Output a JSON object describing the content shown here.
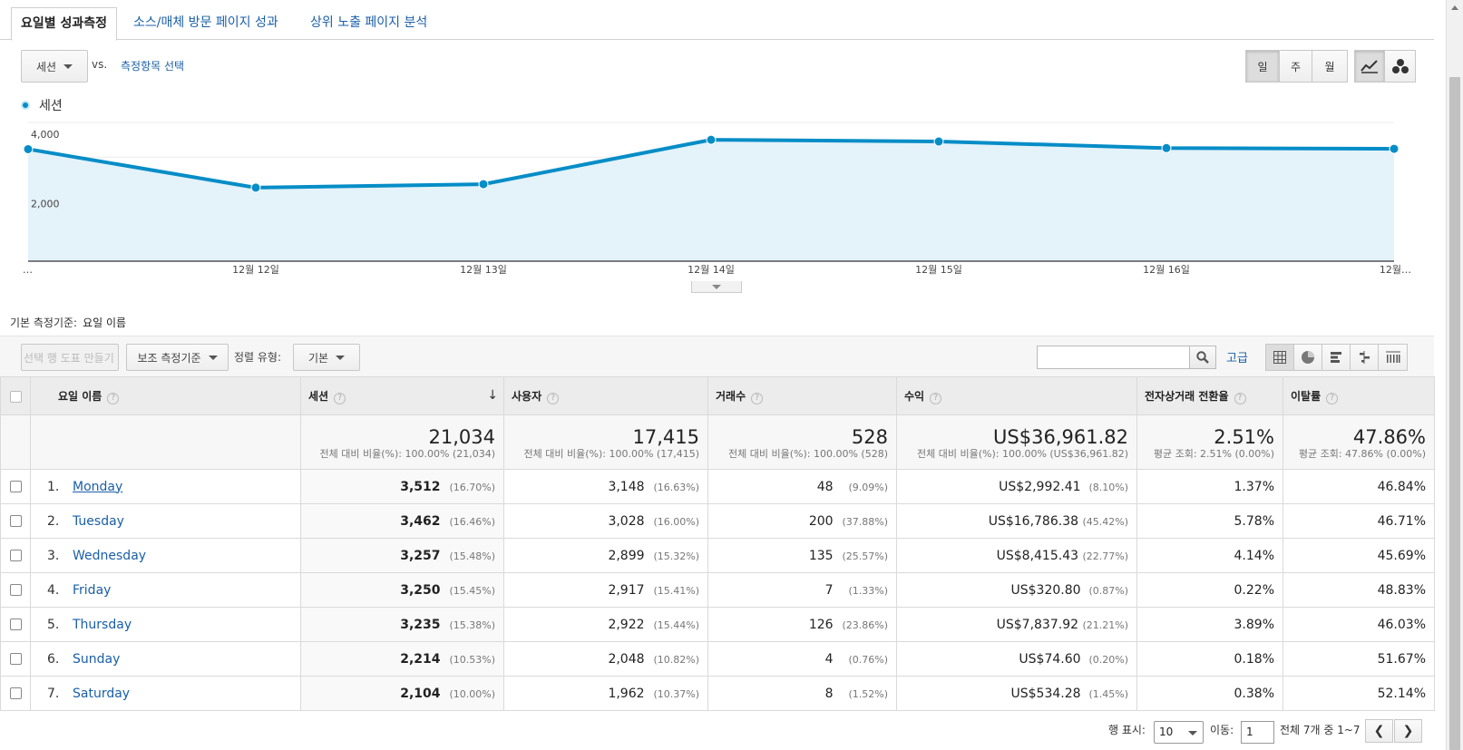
{
  "tabs": [
    "요일별 성과측정",
    "소스/매체 방문 페이지 성과",
    "상위 노출 페이지 분석"
  ],
  "controls": {
    "metric_select": "세션",
    "vs": "vs.",
    "compare_link": "측정항목 선택",
    "period_day": "일",
    "period_week": "주",
    "period_month": "월",
    "chart_line_icon": "line-chart-icon",
    "chart_motion_icon": "motion-chart-icon"
  },
  "chart_data": {
    "type": "area",
    "series": [
      {
        "name": "세션",
        "values": [
          3230,
          2120,
          2220,
          3500,
          3450,
          3260,
          3240
        ]
      }
    ],
    "x": [
      "…",
      "12월 12일",
      "12월 13일",
      "12월 14일",
      "12월 15일",
      "12월 16일",
      "12월…"
    ],
    "yticks": [
      "4,000",
      "2,000"
    ],
    "ylim": [
      0,
      4000
    ],
    "grid": true,
    "legend": "top-left",
    "color": "#058dc7",
    "fill": "#e4f2f9"
  },
  "primary_dimension": {
    "label": "기본 측정기준:",
    "value": "요일 이름"
  },
  "toolbar": {
    "make_chart": "선택 행 도표 만들기",
    "secondary_dim": "보조 측정기준",
    "sort_label": "정렬 유형:",
    "sort_value": "기본",
    "search_placeholder": "",
    "advanced": "고급"
  },
  "table": {
    "headers": {
      "name": "요일 이름",
      "sessions": "세션",
      "users": "사용자",
      "transactions": "거래수",
      "revenue": "수익",
      "conversion": "전자상거래 전환율",
      "bounce": "이탈률"
    },
    "totals": {
      "sessions": "21,034",
      "sessions_sub": "전체 대비 비율(%): 100.00% (21,034)",
      "users": "17,415",
      "users_sub": "전체 대비 비율(%): 100.00% (17,415)",
      "transactions": "528",
      "transactions_sub": "전체 대비 비율(%): 100.00% (528)",
      "revenue": "US$36,961.82",
      "revenue_sub": "전체 대비 비율(%): 100.00% (US$36,961.82)",
      "conversion": "2.51%",
      "conversion_sub": "평균 조회: 2.51% (0.00%)",
      "bounce": "47.86%",
      "bounce_sub": "평균 조회: 47.86% (0.00%)"
    },
    "rows": [
      {
        "idx": "1.",
        "name": "Monday",
        "sessions": "3,512",
        "sessions_pct": "(16.70%)",
        "users": "3,148",
        "users_pct": "(16.63%)",
        "tx": "48",
        "tx_pct": "(9.09%)",
        "rev": "US$2,992.41",
        "rev_pct": "(8.10%)",
        "conv": "1.37%",
        "bounce": "46.84%"
      },
      {
        "idx": "2.",
        "name": "Tuesday",
        "sessions": "3,462",
        "sessions_pct": "(16.46%)",
        "users": "3,028",
        "users_pct": "(16.00%)",
        "tx": "200",
        "tx_pct": "(37.88%)",
        "rev": "US$16,786.38",
        "rev_pct": "(45.42%)",
        "conv": "5.78%",
        "bounce": "46.71%"
      },
      {
        "idx": "3.",
        "name": "Wednesday",
        "sessions": "3,257",
        "sessions_pct": "(15.48%)",
        "users": "2,899",
        "users_pct": "(15.32%)",
        "tx": "135",
        "tx_pct": "(25.57%)",
        "rev": "US$8,415.43",
        "rev_pct": "(22.77%)",
        "conv": "4.14%",
        "bounce": "45.69%"
      },
      {
        "idx": "4.",
        "name": "Friday",
        "sessions": "3,250",
        "sessions_pct": "(15.45%)",
        "users": "2,917",
        "users_pct": "(15.41%)",
        "tx": "7",
        "tx_pct": "(1.33%)",
        "rev": "US$320.80",
        "rev_pct": "(0.87%)",
        "conv": "0.22%",
        "bounce": "48.83%"
      },
      {
        "idx": "5.",
        "name": "Thursday",
        "sessions": "3,235",
        "sessions_pct": "(15.38%)",
        "users": "2,922",
        "users_pct": "(15.44%)",
        "tx": "126",
        "tx_pct": "(23.86%)",
        "rev": "US$7,837.92",
        "rev_pct": "(21.21%)",
        "conv": "3.89%",
        "bounce": "46.03%"
      },
      {
        "idx": "6.",
        "name": "Sunday",
        "sessions": "2,214",
        "sessions_pct": "(10.53%)",
        "users": "2,048",
        "users_pct": "(10.82%)",
        "tx": "4",
        "tx_pct": "(0.76%)",
        "rev": "US$74.60",
        "rev_pct": "(0.20%)",
        "conv": "0.18%",
        "bounce": "51.67%"
      },
      {
        "idx": "7.",
        "name": "Saturday",
        "sessions": "2,104",
        "sessions_pct": "(10.00%)",
        "users": "1,962",
        "users_pct": "(10.37%)",
        "tx": "8",
        "tx_pct": "(1.52%)",
        "rev": "US$534.28",
        "rev_pct": "(1.45%)",
        "conv": "0.38%",
        "bounce": "52.14%"
      }
    ]
  },
  "pagination": {
    "rows_label": "행 표시:",
    "rows_value": "10",
    "goto_label": "이동:",
    "goto_value": "1",
    "range": "전체 7개 중 1~7",
    "prev": "❮",
    "next": "❯"
  }
}
